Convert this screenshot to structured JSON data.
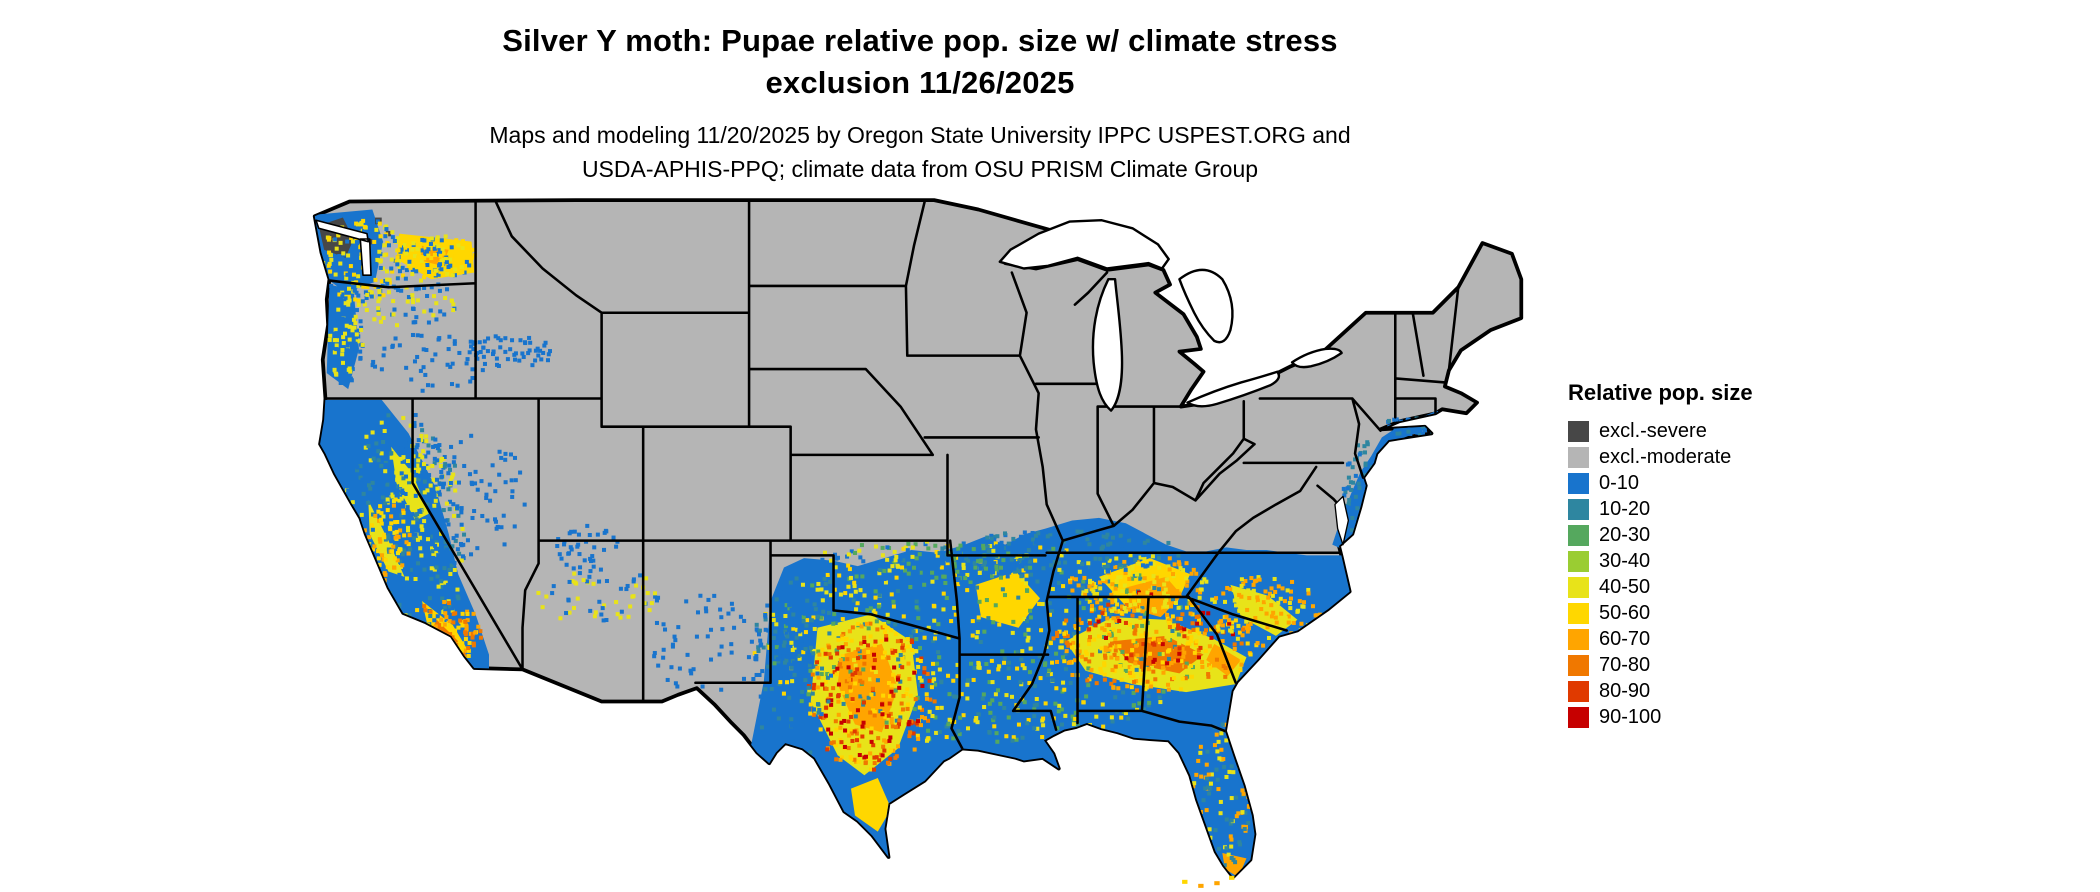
{
  "header": {
    "title_line1": "Silver Y moth: Pupae relative pop. size w/ climate stress",
    "title_line2": "exclusion 11/26/2025",
    "subtitle_line1": "Maps and modeling 11/20/2025 by Oregon State University IPPC USPEST.ORG and",
    "subtitle_line2": "USDA-APHIS-PPQ; climate data from OSU PRISM Climate Group"
  },
  "legend": {
    "title": "Relative pop. size",
    "items": [
      {
        "label": "excl.-severe",
        "color": "#474747"
      },
      {
        "label": "excl.-moderate",
        "color": "#b5b5b5"
      },
      {
        "label": "0-10",
        "color": "#1874cd"
      },
      {
        "label": "10-20",
        "color": "#2e86a0"
      },
      {
        "label": "20-30",
        "color": "#55a85e"
      },
      {
        "label": "30-40",
        "color": "#9acd32"
      },
      {
        "label": "40-50",
        "color": "#e8e319"
      },
      {
        "label": "50-60",
        "color": "#ffd700"
      },
      {
        "label": "60-70",
        "color": "#ffa500"
      },
      {
        "label": "70-80",
        "color": "#f07800"
      },
      {
        "label": "80-90",
        "color": "#e03a00"
      },
      {
        "label": "90-100",
        "color": "#c60000"
      }
    ]
  }
}
